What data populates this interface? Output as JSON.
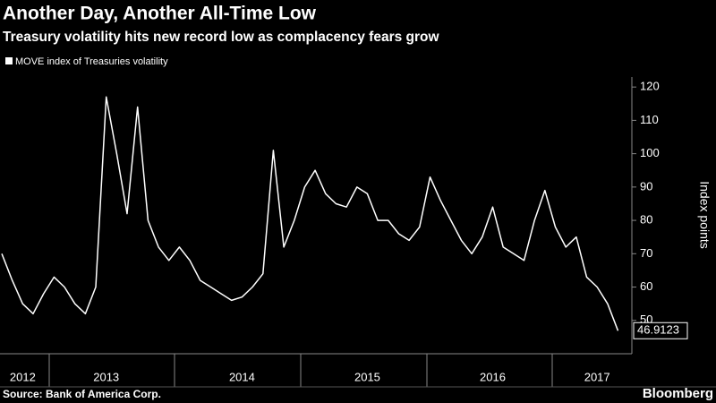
{
  "chart_data": {
    "type": "line",
    "title": "Another Day, Another All-Time Low",
    "subtitle": "Treasury volatility hits new record low as complacency fears grow",
    "y_axis_label": "Index points",
    "source": "Source: Bank of America Corp.",
    "brand": "Bloomberg",
    "categories": [
      null,
      null,
      "2012",
      null,
      null,
      null,
      null,
      null,
      null,
      null,
      "2013",
      null,
      null,
      null,
      null,
      null,
      null,
      null,
      null,
      null,
      null,
      null,
      null,
      "2014",
      null,
      null,
      null,
      null,
      null,
      null,
      null,
      null,
      null,
      null,
      null,
      "2015",
      null,
      null,
      null,
      null,
      null,
      null,
      null,
      null,
      null,
      null,
      null,
      "2016",
      null,
      null,
      null,
      null,
      null,
      null,
      null,
      null,
      null,
      "2017",
      null,
      null
    ],
    "series": [
      {
        "name": "MOVE index of Treasuries volatility",
        "color": "#ffffff",
        "values": [
          70,
          62,
          55,
          52,
          58,
          63,
          60,
          55,
          52,
          60,
          117,
          100,
          82,
          114,
          80,
          72,
          68,
          72,
          68,
          62,
          60,
          58,
          56,
          57,
          60,
          64,
          101,
          72,
          80,
          90,
          95,
          88,
          85,
          84,
          90,
          88,
          80,
          80,
          76,
          74,
          78,
          93,
          86,
          80,
          74,
          70,
          75,
          84,
          72,
          70,
          68,
          80,
          89,
          78,
          72,
          75,
          63,
          60,
          55,
          46.9123
        ]
      }
    ],
    "ylim": [
      40,
      123
    ],
    "yticks": [
      50,
      60,
      70,
      80,
      90,
      100,
      110,
      120
    ],
    "grid": false
  }
}
